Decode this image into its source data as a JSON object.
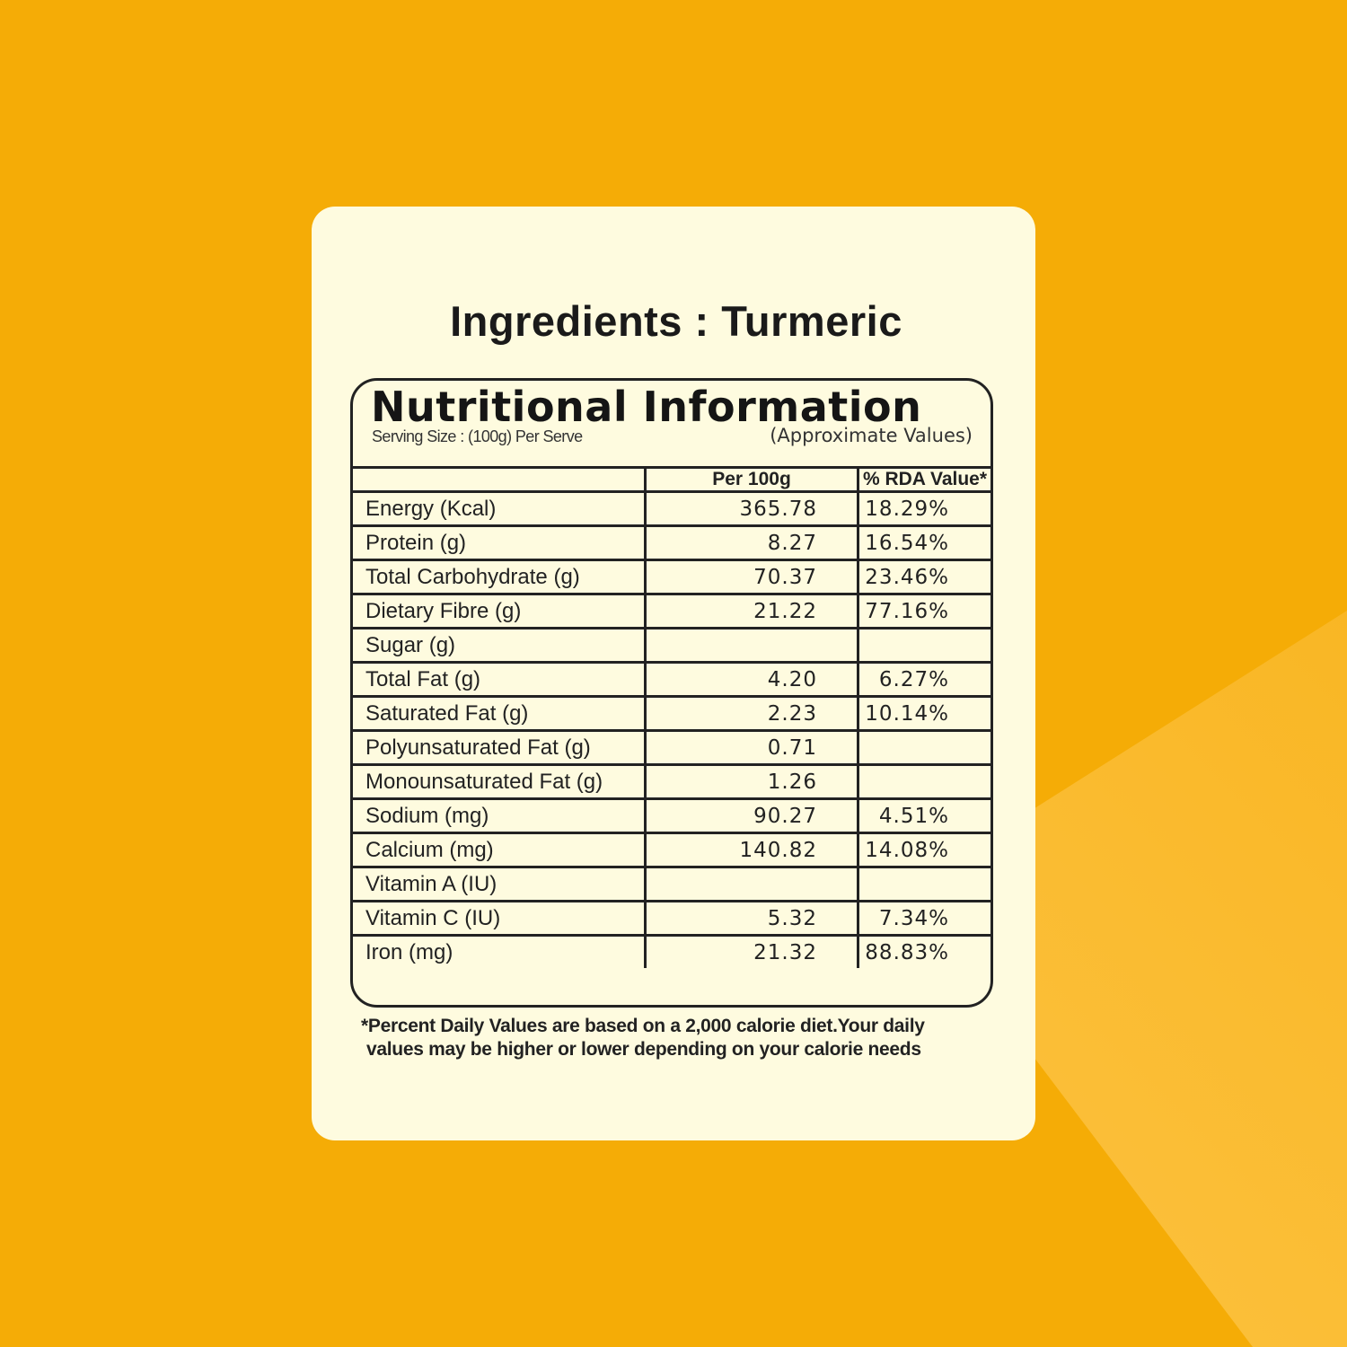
{
  "colors": {
    "background": "#f5ac06",
    "card": "#fefbdf",
    "text": "#222222"
  },
  "title": "Ingredients : Turmeric",
  "panel": {
    "heading": "Nutritional Information",
    "serving_size": "Serving Size : (100g) Per Serve",
    "approx": "(Approximate Values)",
    "columns": [
      "",
      "Per 100g",
      "% RDA Value*"
    ],
    "rows": [
      {
        "nutrient": "Energy (Kcal)",
        "per100g": "365.78",
        "rda": "18.29%"
      },
      {
        "nutrient": "Protein (g)",
        "per100g": "8.27",
        "rda": "16.54%"
      },
      {
        "nutrient": "Total Carbohydrate (g)",
        "per100g": "70.37",
        "rda": "23.46%"
      },
      {
        "nutrient": "Dietary Fibre (g)",
        "per100g": "21.22",
        "rda": "77.16%"
      },
      {
        "nutrient": "Sugar (g)",
        "per100g": "",
        "rda": ""
      },
      {
        "nutrient": "Total Fat (g)",
        "per100g": "4.20",
        "rda": "6.27%"
      },
      {
        "nutrient": "Saturated Fat (g)",
        "per100g": "2.23",
        "rda": "10.14%"
      },
      {
        "nutrient": "Polyunsaturated Fat (g)",
        "per100g": "0.71",
        "rda": ""
      },
      {
        "nutrient": "Monounsaturated Fat (g)",
        "per100g": "1.26",
        "rda": ""
      },
      {
        "nutrient": "Sodium (mg)",
        "per100g": "90.27",
        "rda": "4.51%"
      },
      {
        "nutrient": "Calcium (mg)",
        "per100g": "140.82",
        "rda": "14.08%"
      },
      {
        "nutrient": "Vitamin A (IU)",
        "per100g": "",
        "rda": ""
      },
      {
        "nutrient": "Vitamin C (IU)",
        "per100g": "5.32",
        "rda": "7.34%"
      },
      {
        "nutrient": "Iron (mg)",
        "per100g": "21.32",
        "rda": "88.83%"
      }
    ]
  },
  "footnote": {
    "line1": "*Percent Daily Values are based on a 2,000 calorie diet.Your daily",
    "line2": "values may be higher or lower depending on your calorie needs"
  }
}
